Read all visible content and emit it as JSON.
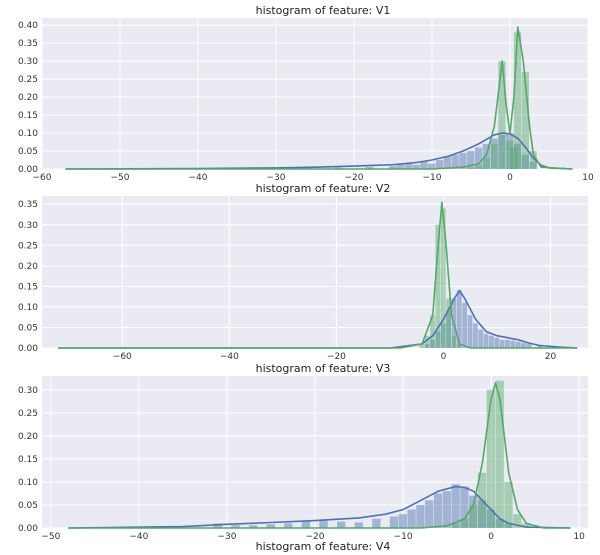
{
  "chart_data": [
    {
      "type": "histogram",
      "title": "histogram of feature: V1",
      "xlim": [
        -60,
        10
      ],
      "ylim": [
        0,
        0.42
      ],
      "xticks": [
        -60,
        -50,
        -40,
        -30,
        -20,
        -10,
        0,
        10
      ],
      "yticks": [
        0.0,
        0.05,
        0.1,
        0.15,
        0.2,
        0.25,
        0.3,
        0.35,
        0.4
      ],
      "grid": true,
      "colors": {
        "series_a": "#4c72b0",
        "series_b": "#55a868"
      },
      "series": [
        {
          "color": "#4c72b0",
          "bars": [
            [
              -26,
              0.005
            ],
            [
              -22,
              0.004
            ],
            [
              -18,
              0.006
            ],
            [
              -15,
              0.008
            ],
            [
              -14,
              0.012
            ],
            [
              -13,
              0.018
            ],
            [
              -12,
              0.012
            ],
            [
              -11,
              0.02
            ],
            [
              -10,
              0.015
            ],
            [
              -9,
              0.025
            ],
            [
              -8,
              0.035
            ],
            [
              -7,
              0.04
            ],
            [
              -6,
              0.045
            ],
            [
              -5,
              0.05
            ],
            [
              -4,
              0.06
            ],
            [
              -3,
              0.07
            ],
            [
              -2,
              0.085
            ],
            [
              -1,
              0.095
            ],
            [
              0,
              0.1
            ],
            [
              1,
              0.07
            ],
            [
              2,
              0.04
            ],
            [
              3,
              0.02
            ]
          ],
          "kde": [
            [
              -57,
              0.0
            ],
            [
              -40,
              0.001
            ],
            [
              -30,
              0.003
            ],
            [
              -25,
              0.005
            ],
            [
              -20,
              0.008
            ],
            [
              -15,
              0.012
            ],
            [
              -12,
              0.018
            ],
            [
              -10,
              0.025
            ],
            [
              -8,
              0.035
            ],
            [
              -6,
              0.05
            ],
            [
              -4,
              0.07
            ],
            [
              -2,
              0.095
            ],
            [
              -1,
              0.1
            ],
            [
              0,
              0.098
            ],
            [
              1,
              0.085
            ],
            [
              2,
              0.06
            ],
            [
              3,
              0.03
            ],
            [
              4,
              0.01
            ],
            [
              5,
              0.003
            ],
            [
              8,
              0.0
            ]
          ]
        },
        {
          "color": "#55a868",
          "bars": [
            [
              -5,
              0.005
            ],
            [
              -4,
              0.01
            ],
            [
              -3,
              0.03
            ],
            [
              -2,
              0.07
            ],
            [
              -1,
              0.3
            ],
            [
              0,
              0.08
            ],
            [
              0.5,
              0.06
            ],
            [
              1,
              0.38
            ],
            [
              2,
              0.27
            ],
            [
              3,
              0.05
            ]
          ],
          "kde": [
            [
              -57,
              0.0
            ],
            [
              -10,
              0.0
            ],
            [
              -6,
              0.005
            ],
            [
              -4,
              0.015
            ],
            [
              -3,
              0.04
            ],
            [
              -2,
              0.12
            ],
            [
              -1,
              0.3
            ],
            [
              -0.5,
              0.18
            ],
            [
              0,
              0.1
            ],
            [
              0.5,
              0.2
            ],
            [
              1,
              0.395
            ],
            [
              1.7,
              0.3
            ],
            [
              2.5,
              0.12
            ],
            [
              3,
              0.04
            ],
            [
              4,
              0.005
            ],
            [
              8,
              0.0
            ]
          ]
        }
      ]
    },
    {
      "type": "histogram",
      "title": "histogram of feature: V2",
      "xlim": [
        -75,
        27
      ],
      "ylim": [
        0,
        0.37
      ],
      "xticks": [
        -60,
        -40,
        -20,
        0,
        20
      ],
      "yticks": [
        0.0,
        0.05,
        0.1,
        0.15,
        0.2,
        0.25,
        0.3,
        0.35
      ],
      "grid": true,
      "colors": {
        "series_a": "#4c72b0",
        "series_b": "#55a868"
      },
      "series": [
        {
          "color": "#4c72b0",
          "bars": [
            [
              -3,
              0.01
            ],
            [
              -2,
              0.02
            ],
            [
              -1,
              0.04
            ],
            [
              0,
              0.06
            ],
            [
              1,
              0.09
            ],
            [
              2,
              0.12
            ],
            [
              3,
              0.14
            ],
            [
              4,
              0.11
            ],
            [
              5,
              0.08
            ],
            [
              6,
              0.06
            ],
            [
              7,
              0.045
            ],
            [
              8,
              0.035
            ],
            [
              9,
              0.03
            ],
            [
              10,
              0.025
            ],
            [
              11,
              0.02
            ],
            [
              12,
              0.02
            ],
            [
              13,
              0.018
            ],
            [
              14,
              0.015
            ],
            [
              15,
              0.012
            ],
            [
              16,
              0.01
            ],
            [
              18,
              0.006
            ],
            [
              20,
              0.003
            ],
            [
              22,
              0.002
            ]
          ],
          "kde": [
            [
              -72,
              0.0
            ],
            [
              -10,
              0.0
            ],
            [
              -4,
              0.01
            ],
            [
              -2,
              0.03
            ],
            [
              0,
              0.07
            ],
            [
              2,
              0.12
            ],
            [
              3,
              0.14
            ],
            [
              4,
              0.12
            ],
            [
              6,
              0.07
            ],
            [
              8,
              0.04
            ],
            [
              10,
              0.03
            ],
            [
              12,
              0.025
            ],
            [
              14,
              0.02
            ],
            [
              16,
              0.012
            ],
            [
              18,
              0.006
            ],
            [
              22,
              0.002
            ],
            [
              25,
              0.0
            ]
          ]
        },
        {
          "color": "#55a868",
          "bars": [
            [
              -4,
              0.01
            ],
            [
              -3,
              0.03
            ],
            [
              -2,
              0.08
            ],
            [
              -1,
              0.3
            ],
            [
              0,
              0.34
            ],
            [
              1,
              0.12
            ],
            [
              2,
              0.03
            ],
            [
              3,
              0.01
            ]
          ],
          "kde": [
            [
              -72,
              0.0
            ],
            [
              -8,
              0.0
            ],
            [
              -4,
              0.01
            ],
            [
              -2,
              0.08
            ],
            [
              -1,
              0.25
            ],
            [
              -0.3,
              0.355
            ],
            [
              0.5,
              0.25
            ],
            [
              1.5,
              0.08
            ],
            [
              3,
              0.01
            ],
            [
              5,
              0.0
            ],
            [
              25,
              0.0
            ]
          ]
        }
      ]
    },
    {
      "type": "histogram",
      "title": "histogram of feature: V3",
      "xlabel": "histogram of feature: V4",
      "xlim": [
        -51,
        11
      ],
      "ylim": [
        0,
        0.33
      ],
      "xticks": [
        -50,
        -40,
        -30,
        -20,
        -10,
        0,
        10
      ],
      "yticks": [
        0.0,
        0.05,
        0.1,
        0.15,
        0.2,
        0.25,
        0.3
      ],
      "grid": true,
      "colors": {
        "series_a": "#4c72b0",
        "series_b": "#55a868"
      },
      "series": [
        {
          "color": "#4c72b0",
          "bars": [
            [
              -31,
              0.01
            ],
            [
              -29,
              0.006
            ],
            [
              -27,
              0.006
            ],
            [
              -25,
              0.008
            ],
            [
              -23,
              0.01
            ],
            [
              -21,
              0.015
            ],
            [
              -19,
              0.016
            ],
            [
              -17,
              0.014
            ],
            [
              -15,
              0.012
            ],
            [
              -13,
              0.02
            ],
            [
              -11,
              0.025
            ],
            [
              -10,
              0.03
            ],
            [
              -9,
              0.04
            ],
            [
              -8,
              0.05
            ],
            [
              -7,
              0.06
            ],
            [
              -6,
              0.075
            ],
            [
              -5,
              0.08
            ],
            [
              -4,
              0.095
            ],
            [
              -3,
              0.09
            ],
            [
              -2,
              0.07
            ],
            [
              -1,
              0.06
            ],
            [
              0,
              0.04
            ],
            [
              1,
              0.02
            ],
            [
              2,
              0.01
            ]
          ],
          "kde": [
            [
              -48,
              0.0
            ],
            [
              -35,
              0.003
            ],
            [
              -30,
              0.008
            ],
            [
              -25,
              0.012
            ],
            [
              -20,
              0.016
            ],
            [
              -15,
              0.022
            ],
            [
              -12,
              0.03
            ],
            [
              -10,
              0.04
            ],
            [
              -8,
              0.06
            ],
            [
              -6,
              0.08
            ],
            [
              -4,
              0.09
            ],
            [
              -3,
              0.088
            ],
            [
              -2,
              0.08
            ],
            [
              -1,
              0.06
            ],
            [
              0,
              0.04
            ],
            [
              1,
              0.02
            ],
            [
              2,
              0.01
            ],
            [
              4,
              0.002
            ],
            [
              9,
              0.0
            ]
          ]
        },
        {
          "color": "#55a868",
          "bars": [
            [
              -4,
              0.01
            ],
            [
              -3,
              0.02
            ],
            [
              -2,
              0.05
            ],
            [
              -1,
              0.12
            ],
            [
              0,
              0.3
            ],
            [
              1,
              0.32
            ],
            [
              2,
              0.1
            ],
            [
              3,
              0.03
            ],
            [
              4,
              0.01
            ]
          ],
          "kde": [
            [
              -48,
              0.0
            ],
            [
              -8,
              0.0
            ],
            [
              -5,
              0.005
            ],
            [
              -3,
              0.02
            ],
            [
              -2,
              0.05
            ],
            [
              -1,
              0.14
            ],
            [
              0,
              0.28
            ],
            [
              0.5,
              0.315
            ],
            [
              1,
              0.28
            ],
            [
              2,
              0.12
            ],
            [
              3,
              0.04
            ],
            [
              4,
              0.01
            ],
            [
              6,
              0.0
            ],
            [
              9,
              0.0
            ]
          ]
        }
      ]
    }
  ]
}
